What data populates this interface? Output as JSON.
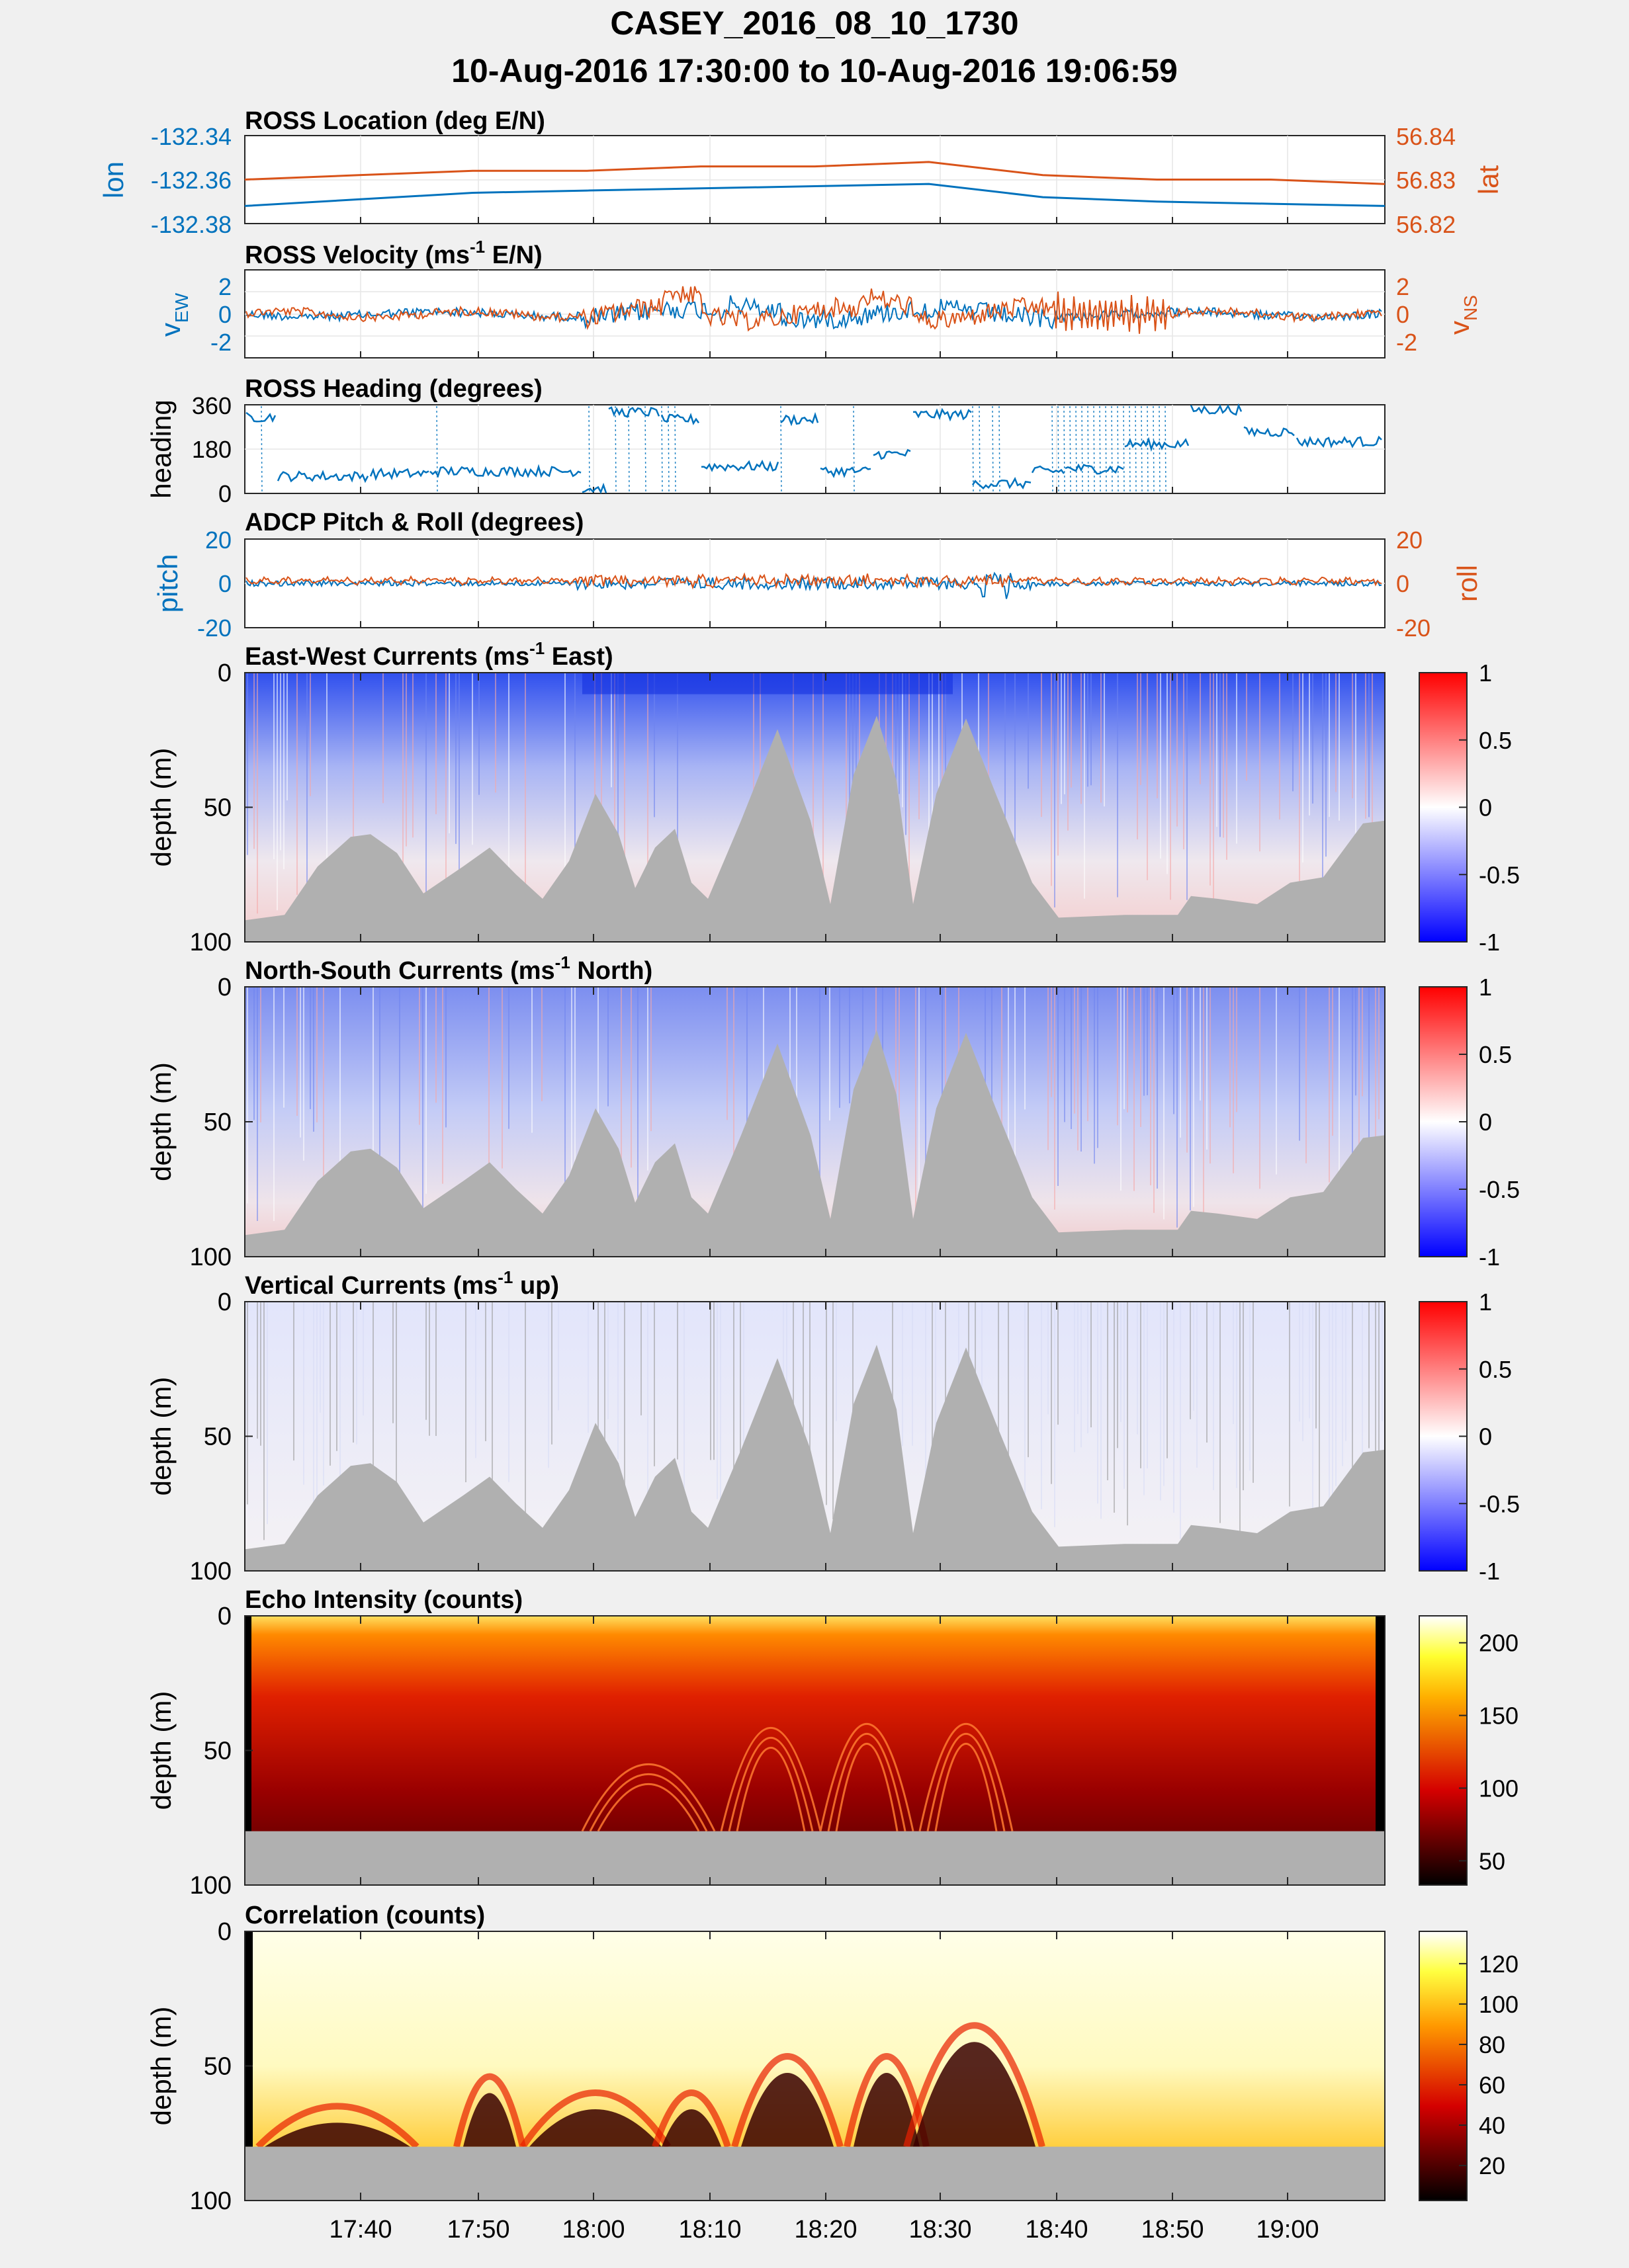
{
  "figure": {
    "title_line1": "CASEY_2016_08_10_1730",
    "title_line2": "10-Aug-2016 17:30:00 to 10-Aug-2016 19:06:59"
  },
  "time_axis": {
    "tick_labels": [
      "17:40",
      "17:50",
      "18:00",
      "18:10",
      "18:20",
      "18:30",
      "18:40",
      "18:50",
      "19:00"
    ],
    "start": "17:30:00",
    "end": "19:06:59"
  },
  "colors": {
    "blue": "#0072bd",
    "orange": "#d95319",
    "seabed": "#b0b0b0"
  },
  "panels": {
    "location": {
      "title": "ROSS Location (deg E/N)",
      "ylabel_left": "lon",
      "ylabel_right": "lat",
      "yticks_left": [
        "-132.34",
        "-132.36",
        "-132.38"
      ],
      "yticks_right": [
        "56.84",
        "56.83",
        "56.82"
      ]
    },
    "velocity": {
      "title_pre": "ROSS Velocity (ms",
      "title_sup": "-1",
      "title_post": " E/N)",
      "ylabel_left": "v",
      "ylabel_left_sub": "EW",
      "ylabel_right": "v",
      "ylabel_right_sub": "NS",
      "yticks_left": [
        "2",
        "0",
        "-2"
      ],
      "yticks_right": [
        "2",
        "0",
        "-2"
      ]
    },
    "heading": {
      "title": "ROSS Heading (degrees)",
      "ylabel": "heading",
      "yticks": [
        "360",
        "180",
        "0"
      ]
    },
    "pitchroll": {
      "title": "ADCP Pitch & Roll (degrees)",
      "ylabel_left": "pitch",
      "ylabel_right": "roll",
      "yticks_left": [
        "20",
        "0",
        "-20"
      ],
      "yticks_right": [
        "20",
        "0",
        "-20"
      ]
    },
    "ew": {
      "title_pre": "East-West Currents (ms",
      "title_sup": "-1",
      "title_post": " East)",
      "ylabel": "depth (m)",
      "yticks": [
        "0",
        "50",
        "100"
      ],
      "cbar_ticks": [
        "1",
        "0.5",
        "0",
        "-0.5",
        "-1"
      ]
    },
    "ns": {
      "title_pre": "North-South Currents (ms",
      "title_sup": "-1",
      "title_post": " North)",
      "ylabel": "depth (m)",
      "yticks": [
        "0",
        "50",
        "100"
      ],
      "cbar_ticks": [
        "1",
        "0.5",
        "0",
        "-0.5",
        "-1"
      ]
    },
    "vert": {
      "title_pre": "Vertical Currents (ms",
      "title_sup": "-1",
      "title_post": " up)",
      "ylabel": "depth (m)",
      "yticks": [
        "0",
        "50",
        "100"
      ],
      "cbar_ticks": [
        "1",
        "0.5",
        "0",
        "-0.5",
        "-1"
      ]
    },
    "echo": {
      "title": "Echo Intensity (counts)",
      "ylabel": "depth (m)",
      "yticks": [
        "0",
        "50",
        "100"
      ],
      "cbar_ticks": [
        "200",
        "150",
        "100",
        "50"
      ]
    },
    "corr": {
      "title": "Correlation (counts)",
      "ylabel": "depth (m)",
      "yticks": [
        "0",
        "50",
        "100"
      ],
      "cbar_ticks": [
        "120",
        "100",
        "80",
        "60",
        "40",
        "20"
      ]
    }
  },
  "chart_data": [
    {
      "type": "line",
      "panel": "location",
      "x": [
        "17:30",
        "17:40",
        "17:50",
        "18:00",
        "18:10",
        "18:20",
        "18:30",
        "18:40",
        "18:50",
        "19:00",
        "19:06"
      ],
      "series": [
        {
          "name": "lon",
          "axis": "left",
          "values": [
            -132.372,
            -132.369,
            -132.366,
            -132.365,
            -132.364,
            -132.363,
            -132.362,
            -132.368,
            -132.37,
            -132.371,
            -132.372
          ]
        },
        {
          "name": "lat",
          "axis": "right",
          "values": [
            56.83,
            56.831,
            56.832,
            56.832,
            56.833,
            56.833,
            56.834,
            56.831,
            56.83,
            56.83,
            56.829
          ]
        }
      ],
      "ylim_left": [
        -132.38,
        -132.34
      ],
      "ylim_right": [
        56.82,
        56.84
      ]
    },
    {
      "type": "line",
      "panel": "velocity",
      "ylim_left": [
        -3,
        3
      ],
      "ylim_right": [
        -3,
        3
      ],
      "series": [
        {
          "name": "vEW",
          "axis": "left"
        },
        {
          "name": "vNS",
          "axis": "right"
        }
      ]
    },
    {
      "type": "line",
      "panel": "heading",
      "ylim": [
        0,
        360
      ],
      "series": [
        {
          "name": "heading"
        }
      ]
    },
    {
      "type": "line",
      "panel": "pitchroll",
      "ylim_left": [
        -20,
        20
      ],
      "ylim_right": [
        -20,
        20
      ],
      "series": [
        {
          "name": "pitch",
          "axis": "left"
        },
        {
          "name": "roll",
          "axis": "right"
        }
      ]
    },
    {
      "type": "heatmap",
      "panel": "ew",
      "ylim": [
        0,
        100
      ],
      "clim": [
        -1,
        1
      ],
      "colormap": "blue-white-red"
    },
    {
      "type": "heatmap",
      "panel": "ns",
      "ylim": [
        0,
        100
      ],
      "clim": [
        -1,
        1
      ],
      "colormap": "blue-white-red"
    },
    {
      "type": "heatmap",
      "panel": "vert",
      "ylim": [
        0,
        100
      ],
      "clim": [
        -1,
        1
      ],
      "colormap": "blue-white-red"
    },
    {
      "type": "heatmap",
      "panel": "echo",
      "ylim": [
        0,
        100
      ],
      "clim": [
        40,
        230
      ],
      "colormap": "hot"
    },
    {
      "type": "heatmap",
      "panel": "corr",
      "ylim": [
        0,
        100
      ],
      "clim": [
        0,
        135
      ],
      "colormap": "hot"
    }
  ]
}
